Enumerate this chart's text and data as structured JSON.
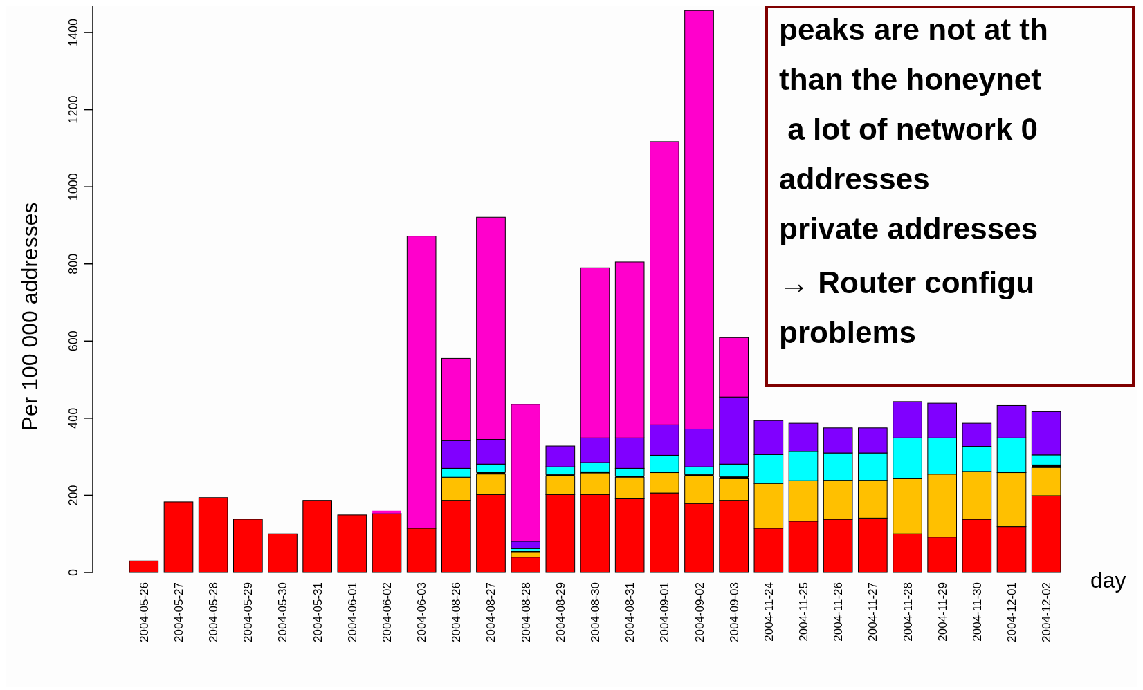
{
  "chart_data": {
    "type": "bar",
    "stacked": true,
    "xlabel": "day",
    "ylabel": "Per 100 000 addresses",
    "categories": [
      "2004-05-26",
      "2004-05-27",
      "2004-05-28",
      "2004-05-29",
      "2004-05-30",
      "2004-05-31",
      "2004-06-01",
      "2004-06-02",
      "2004-06-03",
      "2004-08-26",
      "2004-08-27",
      "2004-08-28",
      "2004-08-29",
      "2004-08-30",
      "2004-08-31",
      "2004-09-01",
      "2004-09-02",
      "2004-09-03",
      "2004-11-24",
      "2004-11-25",
      "2004-11-26",
      "2004-11-27",
      "2004-11-28",
      "2004-11-29",
      "2004-11-30",
      "2004-12-01",
      "2004-12-02"
    ],
    "series": [
      {
        "color": "#ff0000",
        "values": [
          30,
          183,
          194,
          138,
          100,
          187,
          149,
          153,
          115,
          187,
          202,
          40,
          202,
          202,
          191,
          206,
          179,
          187,
          115,
          133,
          138,
          141,
          100,
          92,
          138,
          119,
          199
        ]
      },
      {
        "color": "#ffc000",
        "values": [
          0,
          0,
          0,
          0,
          0,
          0,
          0,
          0,
          0,
          60,
          53,
          12,
          49,
          56,
          56,
          53,
          72,
          56,
          116,
          105,
          101,
          98,
          143,
          163,
          124,
          140,
          73
        ]
      },
      {
        "color": "#000000",
        "values": [
          0,
          0,
          0,
          0,
          0,
          0,
          0,
          0,
          0,
          0,
          5,
          4,
          3,
          3,
          3,
          0,
          3,
          5,
          0,
          0,
          0,
          0,
          0,
          0,
          0,
          0,
          7
        ]
      },
      {
        "color": "#00ffff",
        "values": [
          0,
          0,
          0,
          0,
          0,
          0,
          0,
          0,
          0,
          23,
          21,
          6,
          20,
          24,
          20,
          45,
          20,
          33,
          75,
          76,
          71,
          71,
          106,
          94,
          65,
          90,
          26
        ]
      },
      {
        "color": "#8000ff",
        "values": [
          0,
          0,
          0,
          0,
          0,
          0,
          0,
          0,
          0,
          72,
          64,
          19,
          54,
          64,
          79,
          79,
          98,
          174,
          88,
          73,
          65,
          65,
          94,
          90,
          60,
          84,
          112
        ]
      },
      {
        "color": "#ff00cc",
        "values": [
          0,
          0,
          0,
          0,
          0,
          0,
          0,
          7,
          757,
          213,
          576,
          355,
          0,
          441,
          456,
          734,
          1085,
          154,
          0,
          0,
          0,
          0,
          0,
          0,
          0,
          0,
          0
        ]
      }
    ],
    "ylim": [
      0,
      1470
    ],
    "yticks": [
      0,
      200,
      400,
      600,
      800,
      1000,
      1200,
      1400
    ],
    "annotations": [
      "peaks are not at th",
      "than the honeynet",
      " a lot of network 0",
      "addresses",
      "private addresses",
      "→ Router configu",
      "problems"
    ]
  }
}
